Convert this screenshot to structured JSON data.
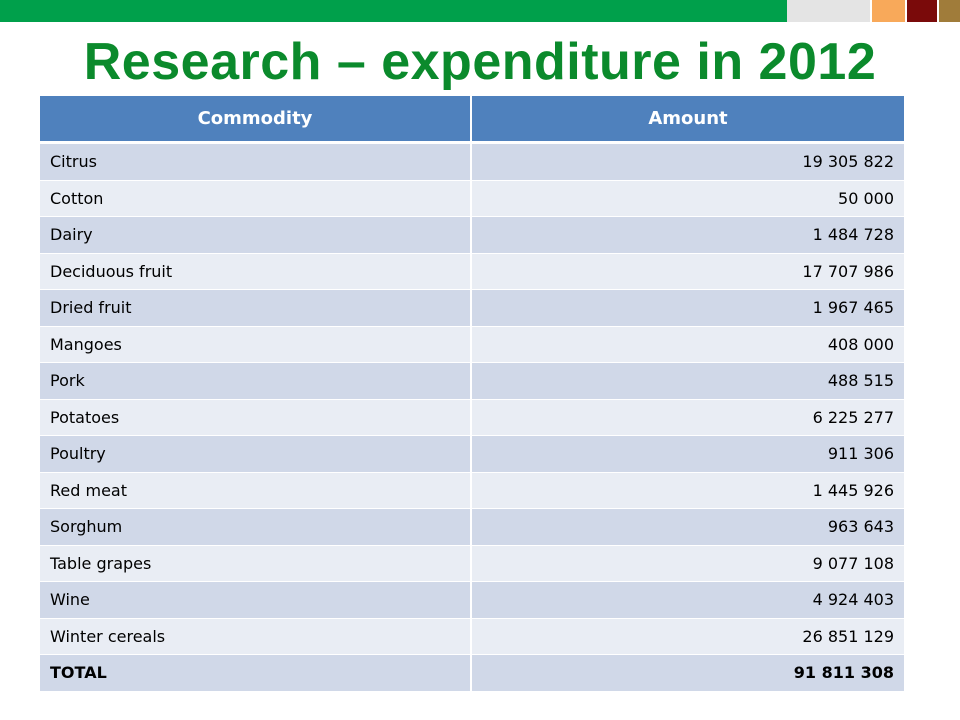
{
  "slide": {
    "title": "Research – expenditure in 2012",
    "bar_colors": [
      "#00a04b",
      "#e4e4e4",
      "#f8a95a",
      "#7a0a0a",
      "#a07c3a"
    ],
    "title_color": "#0b8a2c",
    "header_color": "#4f81bd"
  },
  "table": {
    "headers": [
      "Commodity",
      "Amount"
    ],
    "rows": [
      {
        "commodity": "Citrus",
        "amount": "19 305 822"
      },
      {
        "commodity": "Cotton",
        "amount": "50 000"
      },
      {
        "commodity": "Dairy",
        "amount": "1 484 728"
      },
      {
        "commodity": "Deciduous fruit",
        "amount": "17 707 986"
      },
      {
        "commodity": "Dried fruit",
        "amount": "1 967 465"
      },
      {
        "commodity": "Mangoes",
        "amount": "408 000"
      },
      {
        "commodity": "Pork",
        "amount": "488 515"
      },
      {
        "commodity": "Potatoes",
        "amount": "6 225 277"
      },
      {
        "commodity": "Poultry",
        "amount": "911 306"
      },
      {
        "commodity": "Red meat",
        "amount": "1 445 926"
      },
      {
        "commodity": "Sorghum",
        "amount": "963 643"
      },
      {
        "commodity": "Table grapes",
        "amount": "9 077 108"
      },
      {
        "commodity": "Wine",
        "amount": "4 924 403"
      },
      {
        "commodity": "Winter cereals",
        "amount": "26 851 129"
      }
    ],
    "total": {
      "label": "TOTAL",
      "amount": "91 811 308"
    }
  }
}
